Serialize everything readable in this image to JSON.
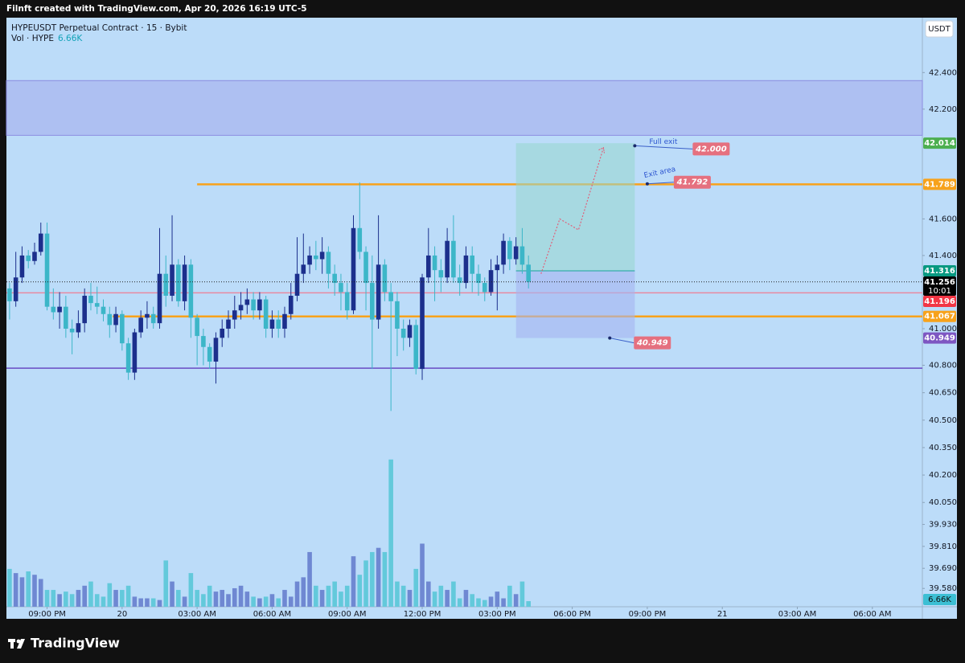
{
  "topbar": "Filnft created with TradingView.com, Apr 20, 2026 16:19 UTC-5",
  "brand": "TradingView",
  "chart_data": {
    "type": "candlestick",
    "title": "HYPEUSDT Perpetual Contract · 15 · Bybit",
    "volume_title": "Vol · HYPE",
    "currency": "USDT",
    "up_color": "#1c2f8c",
    "down_color": "#3cb6c8",
    "candles": {
      "open": [
        41.22,
        41.15,
        41.28,
        41.4,
        41.37,
        41.42,
        41.52,
        41.12,
        41.09,
        41.12,
        41.0,
        40.98,
        41.03,
        41.18,
        41.14,
        41.12,
        41.08,
        41.02,
        41.08,
        40.92,
        40.76,
        40.98,
        41.06,
        41.08,
        41.03,
        41.3,
        41.18,
        41.35,
        41.15,
        41.35,
        41.06,
        40.96,
        40.9,
        40.82,
        40.95,
        41.0,
        41.05,
        41.1,
        41.13,
        41.16,
        41.1,
        41.16,
        41.0,
        41.05,
        41.0,
        41.08,
        41.18,
        41.3,
        41.35,
        41.4,
        41.38,
        41.42,
        41.3,
        41.25,
        41.2,
        41.1,
        41.55,
        41.42,
        41.25,
        41.05,
        41.35,
        41.2,
        41.15,
        41.0,
        40.95,
        41.02,
        40.78,
        41.28,
        41.4,
        41.32,
        41.28,
        41.48,
        41.28,
        41.25,
        41.4,
        41.3,
        41.25,
        41.2,
        41.32,
        41.35,
        41.48,
        41.38,
        41.45,
        41.35
      ],
      "high": [
        41.25,
        41.42,
        41.45,
        41.43,
        41.47,
        41.58,
        41.58,
        41.22,
        41.2,
        41.18,
        41.05,
        41.1,
        41.22,
        41.25,
        41.23,
        41.16,
        41.12,
        41.12,
        41.1,
        40.95,
        41.0,
        41.1,
        41.15,
        41.12,
        41.55,
        41.4,
        41.62,
        41.38,
        41.4,
        41.38,
        41.08,
        41.0,
        40.92,
        40.98,
        41.05,
        41.1,
        41.18,
        41.2,
        41.22,
        41.2,
        41.2,
        41.18,
        41.1,
        41.1,
        41.12,
        41.25,
        41.5,
        41.52,
        41.45,
        41.48,
        41.5,
        41.45,
        41.35,
        41.3,
        41.25,
        41.62,
        41.8,
        41.45,
        41.4,
        41.62,
        41.38,
        41.25,
        41.2,
        41.05,
        41.05,
        41.05,
        41.3,
        41.55,
        41.45,
        41.38,
        41.55,
        41.62,
        41.35,
        41.45,
        41.45,
        41.35,
        41.28,
        41.38,
        41.4,
        41.52,
        41.5,
        41.5,
        41.55,
        41.4
      ],
      "low": [
        41.05,
        41.12,
        41.25,
        41.33,
        41.35,
        41.4,
        41.1,
        41.05,
        41.0,
        40.95,
        40.86,
        40.95,
        40.98,
        41.1,
        41.08,
        41.04,
        40.95,
        40.98,
        40.88,
        40.72,
        40.72,
        40.95,
        41.0,
        41.0,
        41.0,
        41.12,
        41.15,
        41.12,
        41.1,
        40.95,
        40.8,
        40.8,
        40.78,
        40.7,
        40.9,
        40.95,
        41.0,
        41.05,
        41.08,
        41.05,
        41.05,
        40.95,
        40.95,
        40.95,
        40.95,
        41.05,
        41.15,
        41.25,
        41.3,
        41.32,
        41.3,
        41.22,
        41.18,
        41.1,
        41.05,
        41.08,
        41.38,
        41.1,
        40.78,
        41.0,
        41.15,
        40.55,
        40.85,
        40.88,
        40.9,
        40.75,
        40.72,
        41.25,
        41.15,
        41.2,
        41.25,
        41.25,
        41.18,
        41.22,
        41.2,
        41.18,
        41.15,
        41.18,
        41.1,
        41.3,
        41.32,
        41.35,
        41.3,
        41.22
      ],
      "close": [
        41.15,
        41.28,
        41.4,
        41.37,
        41.42,
        41.52,
        41.12,
        41.09,
        41.12,
        41.0,
        40.98,
        41.03,
        41.18,
        41.14,
        41.12,
        41.08,
        41.02,
        41.08,
        40.92,
        40.76,
        40.98,
        41.06,
        41.08,
        41.03,
        41.3,
        41.18,
        41.35,
        41.15,
        41.35,
        41.06,
        40.96,
        40.9,
        40.82,
        40.95,
        41.0,
        41.05,
        41.1,
        41.13,
        41.16,
        41.1,
        41.16,
        41.0,
        41.05,
        41.0,
        41.08,
        41.18,
        41.3,
        41.35,
        41.4,
        41.38,
        41.42,
        41.3,
        41.25,
        41.2,
        41.1,
        41.55,
        41.42,
        41.25,
        41.05,
        41.35,
        41.2,
        41.15,
        41.0,
        40.95,
        41.02,
        40.78,
        41.28,
        41.4,
        41.32,
        41.28,
        41.48,
        41.28,
        41.25,
        41.4,
        41.3,
        41.25,
        41.2,
        41.32,
        41.35,
        41.48,
        41.38,
        41.45,
        41.35,
        41.256
      ]
    },
    "volume": {
      "values": [
        45,
        40,
        35,
        42,
        38,
        33,
        20,
        20,
        15,
        18,
        15,
        20,
        25,
        30,
        15,
        12,
        28,
        20,
        20,
        25,
        12,
        10,
        10,
        10,
        8,
        55,
        30,
        20,
        12,
        40,
        20,
        15,
        25,
        18,
        20,
        15,
        22,
        25,
        18,
        12,
        10,
        12,
        15,
        10,
        20,
        12,
        30,
        35,
        65,
        25,
        20,
        25,
        30,
        18,
        25,
        60,
        38,
        55,
        65,
        70,
        65,
        175,
        30,
        25,
        20,
        45,
        75,
        30,
        18,
        25,
        20,
        30,
        10,
        20,
        15,
        10,
        8,
        12,
        18,
        10,
        25,
        15,
        30,
        6.66
      ],
      "last_label": "6.66K",
      "lim": [
        0,
        700
      ],
      "up_color": "#6f88d2",
      "down_color": "#63c9db"
    },
    "xlim": [
      -0.5,
      146
    ],
    "ylim": [
      39.48,
      42.7
    ],
    "xticks": [
      {
        "value": 6,
        "label": "09:00 PM"
      },
      {
        "value": 18,
        "label": "20"
      },
      {
        "value": 30,
        "label": "03:00 AM"
      },
      {
        "value": 42,
        "label": "06:00 AM"
      },
      {
        "value": 54,
        "label": "09:00 AM"
      },
      {
        "value": 66,
        "label": "12:00 PM"
      },
      {
        "value": 78,
        "label": "03:00 PM"
      },
      {
        "value": 90,
        "label": "06:00 PM"
      },
      {
        "value": 102,
        "label": "09:00 PM"
      },
      {
        "value": 114,
        "label": "21"
      },
      {
        "value": 126,
        "label": "03:00 AM"
      },
      {
        "value": 138,
        "label": "06:00 AM"
      }
    ],
    "yticks": [
      {
        "value": 42.4,
        "label": "42.400"
      },
      {
        "value": 42.2,
        "label": "42.200"
      },
      {
        "value": 41.6,
        "label": "41.600"
      },
      {
        "value": 41.4,
        "label": "41.400"
      },
      {
        "value": 41,
        "label": "41.000"
      },
      {
        "value": 40.8,
        "label": "40.800"
      },
      {
        "value": 40.65,
        "label": "40.650"
      },
      {
        "value": 40.5,
        "label": "40.500"
      },
      {
        "value": 40.35,
        "label": "40.350"
      },
      {
        "value": 40.2,
        "label": "40.200"
      },
      {
        "value": 40.05,
        "label": "40.050"
      },
      {
        "value": 39.93,
        "label": "39.930"
      },
      {
        "value": 39.81,
        "label": "39.810"
      },
      {
        "value": 39.69,
        "label": "39.690"
      },
      {
        "value": 39.58,
        "label": "39.580"
      }
    ],
    "zone": [
      42.057,
      42.356
    ],
    "hlines": [
      {
        "value": 41.789,
        "color": "#f7a21b",
        "start": 30
      },
      {
        "value": 41.067,
        "color": "#f7a21b",
        "start": 16.5
      },
      {
        "value": 41.196,
        "color": "#e88aa0"
      },
      {
        "value": 40.784,
        "color": "#6a4bc4"
      }
    ],
    "position": {
      "start": 81,
      "end": 100,
      "entry": 41.316,
      "target": 42.014,
      "stop": 40.949
    },
    "projection": {
      "x": [
        85,
        88,
        91,
        95
      ],
      "y": [
        41.3,
        41.6,
        41.54,
        41.99
      ]
    },
    "annotations": [
      {
        "x": 100,
        "text": "Full exit",
        "price": {
          "value": 42,
          "label": "42.000"
        }
      },
      {
        "x": 102,
        "text": "Exit area",
        "price": 41.792
      },
      {
        "x": 96,
        "price": 40.949
      }
    ],
    "axis_labels": [
      {
        "value": 42.014,
        "color": "#4caf50"
      },
      {
        "value": 41.789,
        "color": "#f7a21b"
      },
      {
        "value": 41.316,
        "color": "#089981"
      },
      {
        "value": 41.256,
        "color": "#000000",
        "sub": "10:01"
      },
      {
        "value": 41.196,
        "color": "#f23645"
      },
      {
        "value": 41.067,
        "color": "#f7a21b"
      },
      {
        "value": 40.949,
        "color": "#7e57c2"
      }
    ]
  }
}
